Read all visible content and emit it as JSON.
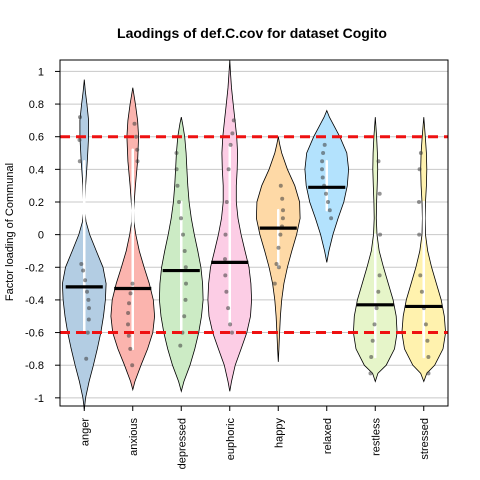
{
  "chart_data": {
    "type": "violin",
    "title": "Laodings of def.C.cov for dataset Cogito",
    "xlabel": "",
    "ylabel": "Factor loading of Communal",
    "ylim": [
      -1.05,
      1.07
    ],
    "yticks": [
      1,
      0.8,
      0.6,
      0.4,
      0.2,
      0,
      -0.2,
      -0.4,
      -0.6,
      -0.8,
      -1
    ],
    "grid": "horizontal",
    "reference_lines": [
      0.6,
      -0.6
    ],
    "reference_line_color": "#ee1111",
    "categories": [
      "anger",
      "anxious",
      "depressed",
      "euphoric",
      "happy",
      "relaxed",
      "restless",
      "stressed"
    ],
    "means": [
      -0.32,
      -0.33,
      -0.22,
      -0.17,
      0.04,
      0.29,
      -0.43,
      -0.44
    ],
    "fill_colors": [
      "#b3cde3",
      "#fbb4ae",
      "#ccebc5",
      "#fccde5",
      "#fed9a6",
      "#b3e2fd",
      "#e6f5c9",
      "#fff2ae"
    ],
    "series": [
      {
        "name": "anger",
        "ymin": -1.07,
        "ymax": 0.95,
        "profile": [
          [
            -1.07,
            0
          ],
          [
            -1.0,
            0.06
          ],
          [
            -0.9,
            0.22
          ],
          [
            -0.8,
            0.42
          ],
          [
            -0.7,
            0.6
          ],
          [
            -0.6,
            0.76
          ],
          [
            -0.5,
            0.88
          ],
          [
            -0.4,
            0.97
          ],
          [
            -0.3,
            1.0
          ],
          [
            -0.2,
            0.86
          ],
          [
            -0.1,
            0.55
          ],
          [
            0.0,
            0.25
          ],
          [
            0.08,
            0.08
          ],
          [
            0.15,
            0.02
          ],
          [
            0.3,
            0.06
          ],
          [
            0.45,
            0.14
          ],
          [
            0.6,
            0.2
          ],
          [
            0.7,
            0.2
          ],
          [
            0.8,
            0.12
          ],
          [
            0.88,
            0.05
          ],
          [
            0.95,
            0
          ]
        ],
        "points": [
          -0.76,
          -0.6,
          -0.52,
          -0.45,
          -0.4,
          -0.35,
          -0.28,
          -0.22,
          -0.18,
          0.72,
          0.58,
          0.45
        ]
      },
      {
        "name": "anxious",
        "ymin": -0.95,
        "ymax": 0.9,
        "profile": [
          [
            -0.95,
            0
          ],
          [
            -0.9,
            0.1
          ],
          [
            -0.8,
            0.38
          ],
          [
            -0.7,
            0.68
          ],
          [
            -0.6,
            0.92
          ],
          [
            -0.5,
            1.0
          ],
          [
            -0.4,
            0.94
          ],
          [
            -0.3,
            0.76
          ],
          [
            -0.2,
            0.52
          ],
          [
            -0.1,
            0.3
          ],
          [
            0.0,
            0.14
          ],
          [
            0.08,
            0.05
          ],
          [
            0.15,
            0.04
          ],
          [
            0.3,
            0.12
          ],
          [
            0.45,
            0.22
          ],
          [
            0.6,
            0.27
          ],
          [
            0.7,
            0.22
          ],
          [
            0.8,
            0.12
          ],
          [
            0.9,
            0
          ]
        ],
        "points": [
          -0.8,
          -0.7,
          -0.62,
          -0.55,
          -0.48,
          -0.42,
          -0.36,
          -0.3,
          0.68,
          0.6,
          0.52,
          0.45
        ]
      },
      {
        "name": "depressed",
        "ymin": -0.96,
        "ymax": 0.72,
        "profile": [
          [
            -0.96,
            0
          ],
          [
            -0.9,
            0.12
          ],
          [
            -0.8,
            0.4
          ],
          [
            -0.7,
            0.62
          ],
          [
            -0.6,
            0.8
          ],
          [
            -0.5,
            0.93
          ],
          [
            -0.4,
            1.0
          ],
          [
            -0.3,
            0.98
          ],
          [
            -0.2,
            0.9
          ],
          [
            -0.1,
            0.76
          ],
          [
            0.0,
            0.6
          ],
          [
            0.1,
            0.46
          ],
          [
            0.2,
            0.36
          ],
          [
            0.3,
            0.3
          ],
          [
            0.4,
            0.26
          ],
          [
            0.5,
            0.22
          ],
          [
            0.6,
            0.16
          ],
          [
            0.68,
            0.06
          ],
          [
            0.72,
            0
          ]
        ],
        "points": [
          -0.68,
          -0.6,
          -0.5,
          -0.4,
          -0.3,
          -0.2,
          -0.1,
          0.0,
          0.1,
          0.2,
          0.3,
          0.4,
          0.5
        ]
      },
      {
        "name": "euphoric",
        "ymin": -0.96,
        "ymax": 1.07,
        "profile": [
          [
            -0.96,
            0
          ],
          [
            -0.9,
            0.08
          ],
          [
            -0.8,
            0.25
          ],
          [
            -0.7,
            0.52
          ],
          [
            -0.6,
            0.78
          ],
          [
            -0.5,
            0.95
          ],
          [
            -0.4,
            1.0
          ],
          [
            -0.3,
            0.97
          ],
          [
            -0.2,
            0.88
          ],
          [
            -0.1,
            0.7
          ],
          [
            0.0,
            0.52
          ],
          [
            0.1,
            0.38
          ],
          [
            0.2,
            0.3
          ],
          [
            0.3,
            0.3
          ],
          [
            0.4,
            0.34
          ],
          [
            0.5,
            0.36
          ],
          [
            0.6,
            0.32
          ],
          [
            0.7,
            0.24
          ],
          [
            0.8,
            0.16
          ],
          [
            0.9,
            0.08
          ],
          [
            1.0,
            0.03
          ],
          [
            1.07,
            0
          ]
        ],
        "points": [
          -0.6,
          -0.55,
          -0.45,
          -0.35,
          -0.25,
          -0.15,
          0.0,
          0.2,
          0.4,
          0.55,
          0.62,
          0.7
        ]
      },
      {
        "name": "happy",
        "ymin": -0.78,
        "ymax": 0.6,
        "profile": [
          [
            -0.78,
            0
          ],
          [
            -0.7,
            0.03
          ],
          [
            -0.6,
            0.06
          ],
          [
            -0.5,
            0.1
          ],
          [
            -0.4,
            0.16
          ],
          [
            -0.3,
            0.26
          ],
          [
            -0.2,
            0.42
          ],
          [
            -0.1,
            0.62
          ],
          [
            0.0,
            0.84
          ],
          [
            0.1,
            1.0
          ],
          [
            0.2,
            0.98
          ],
          [
            0.3,
            0.76
          ],
          [
            0.4,
            0.42
          ],
          [
            0.5,
            0.16
          ],
          [
            0.55,
            0.07
          ],
          [
            0.6,
            0
          ]
        ],
        "points": [
          -0.3,
          -0.18,
          -0.08,
          0.0,
          0.05,
          0.1,
          0.15,
          0.22,
          0.3,
          -0.2
        ]
      },
      {
        "name": "relaxed",
        "ymin": -0.17,
        "ymax": 0.76,
        "profile": [
          [
            -0.17,
            0
          ],
          [
            -0.1,
            0.1
          ],
          [
            0.0,
            0.28
          ],
          [
            0.1,
            0.52
          ],
          [
            0.2,
            0.78
          ],
          [
            0.3,
            0.94
          ],
          [
            0.4,
            1.0
          ],
          [
            0.5,
            0.92
          ],
          [
            0.6,
            0.6
          ],
          [
            0.68,
            0.28
          ],
          [
            0.72,
            0.12
          ],
          [
            0.76,
            0
          ]
        ],
        "points": [
          0.1,
          0.15,
          0.2,
          0.25,
          0.3,
          0.35,
          0.4,
          0.45,
          0.5,
          0.55
        ]
      },
      {
        "name": "restless",
        "ymin": -0.9,
        "ymax": 0.72,
        "profile": [
          [
            -0.9,
            0
          ],
          [
            -0.85,
            0.12
          ],
          [
            -0.8,
            0.5
          ],
          [
            -0.7,
            0.88
          ],
          [
            -0.6,
            1.0
          ],
          [
            -0.5,
            0.96
          ],
          [
            -0.4,
            0.82
          ],
          [
            -0.3,
            0.6
          ],
          [
            -0.2,
            0.38
          ],
          [
            -0.1,
            0.18
          ],
          [
            0.0,
            0.08
          ],
          [
            0.1,
            0.05
          ],
          [
            0.2,
            0.06
          ],
          [
            0.3,
            0.09
          ],
          [
            0.4,
            0.11
          ],
          [
            0.5,
            0.1
          ],
          [
            0.6,
            0.06
          ],
          [
            0.72,
            0
          ]
        ],
        "points": [
          -0.85,
          -0.75,
          -0.65,
          -0.55,
          -0.45,
          -0.35,
          -0.25,
          0.0,
          0.25,
          0.45
        ]
      },
      {
        "name": "stressed",
        "ymin": -0.9,
        "ymax": 0.72,
        "profile": [
          [
            -0.9,
            0
          ],
          [
            -0.85,
            0.14
          ],
          [
            -0.8,
            0.5
          ],
          [
            -0.7,
            0.88
          ],
          [
            -0.6,
            1.0
          ],
          [
            -0.5,
            0.94
          ],
          [
            -0.4,
            0.8
          ],
          [
            -0.3,
            0.58
          ],
          [
            -0.2,
            0.36
          ],
          [
            -0.1,
            0.18
          ],
          [
            0.0,
            0.08
          ],
          [
            0.1,
            0.06
          ],
          [
            0.2,
            0.08
          ],
          [
            0.3,
            0.12
          ],
          [
            0.4,
            0.14
          ],
          [
            0.5,
            0.12
          ],
          [
            0.6,
            0.07
          ],
          [
            0.72,
            0
          ]
        ],
        "points": [
          -0.85,
          -0.75,
          -0.65,
          -0.55,
          -0.45,
          -0.35,
          -0.25,
          0.0,
          0.2,
          0.4,
          0.5
        ]
      }
    ]
  }
}
